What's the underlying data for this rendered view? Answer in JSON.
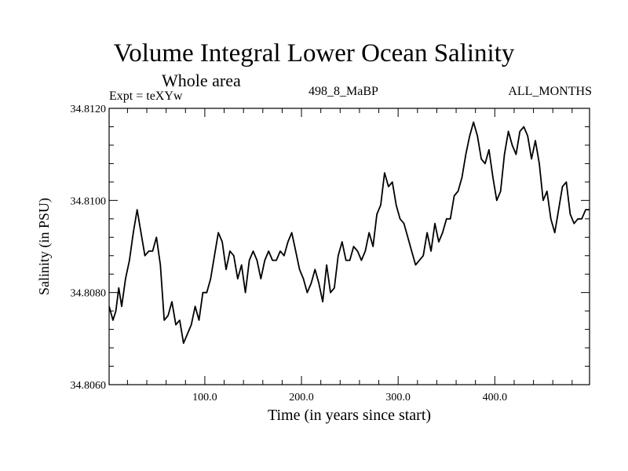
{
  "chart_data": {
    "type": "line",
    "title": "Volume Integral Lower Ocean Salinity",
    "subtitle": "Whole area",
    "left_label": "Expt = teXYw",
    "center_label": "498_8_MaBP",
    "right_label": "ALL_MONTHS",
    "xlabel": "Time (in years since start)",
    "ylabel": "Salinity (in PSU)",
    "xlim": [
      1,
      498
    ],
    "ylim": [
      34.806,
      34.812
    ],
    "xticks": [
      100,
      200,
      300,
      400
    ],
    "xtick_labels": [
      "100.0",
      "200.0",
      "300.0",
      "400.0"
    ],
    "yticks": [
      34.806,
      34.808,
      34.81,
      34.812
    ],
    "ytick_labels": [
      "34.8060",
      "34.8080",
      "34.8100",
      "34.8120"
    ],
    "grid": false,
    "series": [
      {
        "x": [
          1,
          5,
          8,
          11,
          14,
          18,
          22,
          26,
          30,
          34,
          38,
          42,
          46,
          50,
          54,
          58,
          62,
          66,
          70,
          74,
          78,
          82,
          86,
          90,
          94,
          98,
          102,
          106,
          110,
          114,
          118,
          122,
          126,
          130,
          134,
          138,
          142,
          146,
          150,
          154,
          158,
          162,
          166,
          170,
          174,
          178,
          182,
          186,
          190,
          194,
          198,
          202,
          206,
          210,
          214,
          218,
          222,
          226,
          230,
          234,
          238,
          242,
          246,
          250,
          254,
          258,
          262,
          266,
          270,
          274,
          278,
          282,
          286,
          290,
          294,
          298,
          302,
          306,
          310,
          314,
          318,
          322,
          326,
          330,
          334,
          338,
          342,
          346,
          350,
          354,
          358,
          362,
          366,
          370,
          374,
          378,
          382,
          386,
          390,
          394,
          398,
          402,
          406,
          410,
          414,
          418,
          422,
          426,
          430,
          434,
          438,
          442,
          446,
          450,
          454,
          458,
          462,
          466,
          470,
          474,
          478,
          482,
          486,
          490,
          494,
          498
        ],
        "values": [
          34.8077,
          34.8074,
          34.8076,
          34.8081,
          34.8077,
          34.8083,
          34.8087,
          34.8093,
          34.8098,
          34.8093,
          34.8088,
          34.8089,
          34.8089,
          34.8092,
          34.8086,
          34.8074,
          34.8075,
          34.8078,
          34.8073,
          34.8074,
          34.8069,
          34.8071,
          34.8073,
          34.8077,
          34.8074,
          34.808,
          34.808,
          34.8083,
          34.8088,
          34.8093,
          34.8091,
          34.8085,
          34.8089,
          34.8088,
          34.8083,
          34.8086,
          34.808,
          34.8087,
          34.8089,
          34.8087,
          34.8083,
          34.8087,
          34.8089,
          34.8087,
          34.8087,
          34.8089,
          34.8088,
          34.8091,
          34.8093,
          34.8089,
          34.8085,
          34.8083,
          34.808,
          34.8082,
          34.8085,
          34.8082,
          34.8078,
          34.8086,
          34.808,
          34.8081,
          34.8088,
          34.8091,
          34.8087,
          34.8087,
          34.809,
          34.8089,
          34.8087,
          34.8089,
          34.8093,
          34.809,
          34.8097,
          34.8099,
          34.8106,
          34.8103,
          34.8104,
          34.8099,
          34.8096,
          34.8095,
          34.8092,
          34.8089,
          34.8086,
          34.8087,
          34.8088,
          34.8093,
          34.8089,
          34.8095,
          34.8091,
          34.8093,
          34.8096,
          34.8096,
          34.8101,
          34.8102,
          34.8105,
          34.811,
          34.8114,
          34.8117,
          34.8114,
          34.8109,
          34.8108,
          34.8111,
          34.8105,
          34.81,
          34.8102,
          34.811,
          34.8115,
          34.8112,
          34.811,
          34.8115,
          34.8116,
          34.8114,
          34.8109,
          34.8113,
          34.8108,
          34.81,
          34.8102,
          34.8096,
          34.8093,
          34.8098,
          34.8103,
          34.8104,
          34.8097,
          34.8095,
          34.8096,
          34.8096,
          34.8098,
          34.8098
        ]
      }
    ]
  }
}
